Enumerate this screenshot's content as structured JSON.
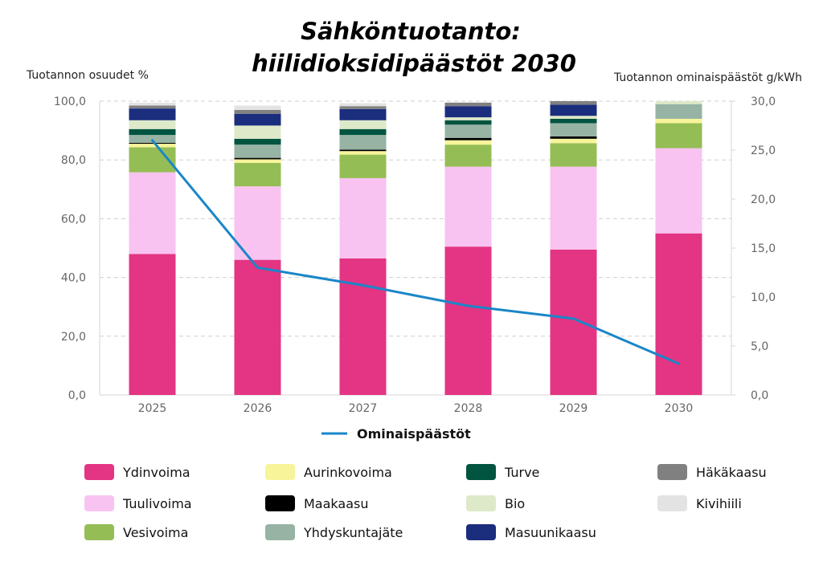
{
  "chart_data": {
    "type": "bar",
    "stacked": true,
    "title_lines": [
      "Sähköntuotanto:",
      "hiilidioksidipäästöt 2030"
    ],
    "ylabel_left": "Tuotannon osuudet %",
    "ylabel_right": "Tuotannon ominaispäästöt g/kWh",
    "ylim_left": [
      0,
      100
    ],
    "ylim_right": [
      0,
      30
    ],
    "yticks_left": [
      "0,0",
      "20,0",
      "40,0",
      "60,0",
      "80,0",
      "100,0"
    ],
    "yticks_right": [
      "0,0",
      "5,0",
      "10,0",
      "15,0",
      "20,0",
      "25,0",
      "30,0"
    ],
    "grid": "horizontal dashed",
    "categories": [
      "2025",
      "2026",
      "2027",
      "2028",
      "2029",
      "2030"
    ],
    "series": [
      {
        "name": "Ydinvoima",
        "color": "#E33583",
        "values": [
          48.0,
          46.0,
          46.5,
          50.5,
          49.5,
          55.0
        ]
      },
      {
        "name": "Tuulivoima",
        "color": "#F8C3F0",
        "values": [
          27.8,
          25.0,
          27.3,
          27.2,
          28.2,
          29.0
        ]
      },
      {
        "name": "Vesivoima",
        "color": "#95BD55",
        "values": [
          8.5,
          8.0,
          8.0,
          7.5,
          8.0,
          8.5
        ]
      },
      {
        "name": "Aurinkovoima",
        "color": "#F7F49A",
        "values": [
          1.2,
          1.2,
          1.2,
          1.5,
          1.5,
          1.5
        ]
      },
      {
        "name": "Maakaasu",
        "color": "#000000",
        "values": [
          0.3,
          0.5,
          0.5,
          0.8,
          0.8,
          0.0
        ]
      },
      {
        "name": "Yhdyskuntajäte",
        "color": "#96B3A4",
        "values": [
          2.7,
          4.5,
          5.0,
          4.5,
          4.5,
          5.0
        ]
      },
      {
        "name": "Turve",
        "color": "#005440",
        "values": [
          2.0,
          2.0,
          2.0,
          1.5,
          1.5,
          0.0
        ]
      },
      {
        "name": "Bio",
        "color": "#DDE9C8",
        "values": [
          3.0,
          4.5,
          3.0,
          1.0,
          1.0,
          1.0
        ]
      },
      {
        "name": "Masuunikaasu",
        "color": "#1B2D7D",
        "values": [
          4.0,
          4.0,
          3.8,
          3.8,
          3.8,
          0.0
        ]
      },
      {
        "name": "Häkäkaasu",
        "color": "#808080",
        "values": [
          1.0,
          1.3,
          1.0,
          1.2,
          1.2,
          0.0
        ]
      },
      {
        "name": "Kivihiili",
        "color": "#E3E3E3",
        "values": [
          1.0,
          1.5,
          1.0,
          0.0,
          0.0,
          0.0
        ]
      }
    ],
    "line_series": {
      "name": "Ominaispäästöt",
      "color": "#1A86C8",
      "axis": "right",
      "values": [
        26.0,
        13.0,
        11.2,
        9.1,
        7.8,
        3.2
      ]
    },
    "legend_placement": "bottom"
  }
}
